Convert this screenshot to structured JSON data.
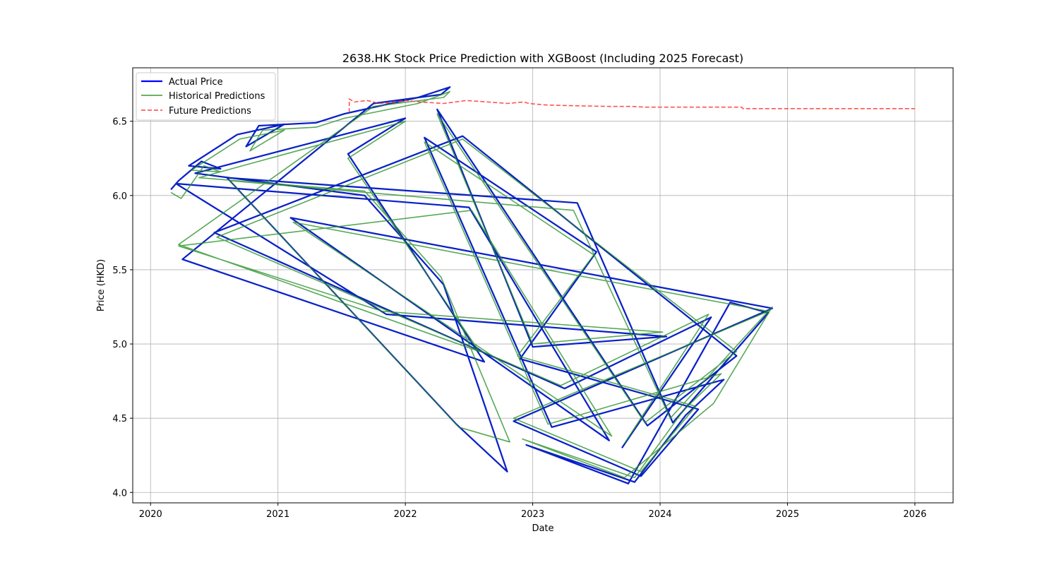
{
  "chart_data": {
    "type": "line",
    "title": "2638.HK Stock Price Prediction with XGBoost (Including 2025 Forecast)",
    "xlabel": "Date",
    "ylabel": "Price (HKD)",
    "xlim": [
      2019.86,
      2026.3
    ],
    "ylim": [
      3.93,
      6.86
    ],
    "x_ticks": [
      2020,
      2021,
      2022,
      2023,
      2024,
      2025,
      2026
    ],
    "x_tick_labels": [
      "2020",
      "2021",
      "2022",
      "2023",
      "2024",
      "2025",
      "2026"
    ],
    "y_ticks": [
      4.0,
      4.5,
      5.0,
      5.5,
      6.0,
      6.5
    ],
    "y_tick_labels": [
      "4.0",
      "4.5",
      "5.0",
      "5.5",
      "6.0",
      "6.5"
    ],
    "grid": true,
    "legend_position": "top-left",
    "colors": {
      "actual": "#0000ff",
      "historical": "#3a9a3a",
      "future": "#ff4040",
      "overlap": "#0b5a4a"
    },
    "legend": [
      "Actual Price",
      "Historical Predictions",
      "Future Predictions"
    ],
    "series": [
      {
        "name": "Actual Price",
        "style": "solid",
        "x": [
          2020.16,
          2020.22,
          2020.4,
          2020.55,
          2020.3,
          2020.68,
          2021.05,
          2020.75,
          2020.85,
          2021.3,
          2021.52,
          2022.1,
          2022.35,
          2022.28,
          2021.75,
          2020.25,
          2022.62,
          2021.55,
          2022.0,
          2020.35,
          2021.68,
          2022.3,
          2022.8,
          2022.4,
          2020.6,
          2023.35,
          2024.1,
          2024.85,
          2024.55,
          2023.75,
          2022.95,
          2023.8,
          2024.2,
          2024.5,
          2023.15,
          2022.15,
          2023.5,
          2022.9,
          2024.3,
          2023.85,
          2022.85,
          2024.88,
          2021.1,
          2023.6,
          2022.5,
          2020.2,
          2021.85,
          2024.05,
          2023.0,
          2022.25,
          2023.9,
          2024.6,
          2022.45,
          2020.5,
          2023.25,
          2024.4,
          2023.7
        ],
        "y": [
          6.04,
          6.1,
          6.23,
          6.18,
          6.2,
          6.41,
          6.48,
          6.33,
          6.47,
          6.49,
          6.55,
          6.66,
          6.73,
          6.68,
          6.62,
          5.57,
          4.88,
          6.28,
          6.52,
          6.15,
          6.0,
          5.4,
          4.14,
          4.46,
          6.12,
          5.95,
          4.47,
          5.21,
          5.28,
          4.06,
          4.32,
          4.07,
          4.52,
          4.76,
          4.44,
          6.39,
          5.62,
          4.9,
          4.56,
          4.11,
          4.48,
          5.24,
          5.85,
          4.35,
          5.92,
          6.08,
          5.2,
          5.05,
          4.98,
          6.58,
          4.45,
          4.92,
          6.4,
          5.75,
          4.7,
          5.18,
          4.3
        ]
      },
      {
        "name": "Historical Predictions",
        "style": "solid",
        "x": [
          2020.16,
          2020.24,
          2020.42,
          2020.55,
          2020.32,
          2020.7,
          2021.05,
          2020.78,
          2020.88,
          2021.3,
          2021.52,
          2022.1,
          2022.35,
          2022.3,
          2021.75,
          2020.22,
          2022.58,
          2021.55,
          2022.0,
          2020.38,
          2021.68,
          2022.28,
          2022.82,
          2022.42,
          2020.62,
          2023.32,
          2024.08,
          2024.88,
          2024.42,
          2023.72,
          2022.92,
          2023.8,
          2024.18,
          2024.48,
          2023.12,
          2022.15,
          2023.48,
          2022.88,
          2024.28,
          2023.85,
          2022.85,
          2024.85,
          2021.12,
          2023.62,
          2022.52,
          2020.22,
          2021.82,
          2024.02,
          2023.0,
          2022.25,
          2023.88,
          2024.6,
          2022.45,
          2020.52,
          2023.22,
          2024.38,
          2023.72
        ],
        "y": [
          6.02,
          5.98,
          6.2,
          6.16,
          6.17,
          6.38,
          6.44,
          6.3,
          6.44,
          6.46,
          6.52,
          6.62,
          6.7,
          6.66,
          6.6,
          5.67,
          4.95,
          6.25,
          6.5,
          6.12,
          6.03,
          5.45,
          4.34,
          4.44,
          6.1,
          5.9,
          4.5,
          5.25,
          4.6,
          4.1,
          4.36,
          4.1,
          4.55,
          4.8,
          4.46,
          6.36,
          5.6,
          4.92,
          4.58,
          4.14,
          4.5,
          5.22,
          5.82,
          4.38,
          5.9,
          5.66,
          5.22,
          5.08,
          5.0,
          6.55,
          4.47,
          4.95,
          6.38,
          5.72,
          4.72,
          5.2,
          4.33
        ]
      },
      {
        "name": "Future Predictions",
        "style": "dashed",
        "x": [
          2021.56,
          2021.56,
          2021.6,
          2021.7,
          2021.8,
          2021.92,
          2022.0,
          2022.12,
          2022.3,
          2022.48,
          2022.65,
          2022.8,
          2022.93,
          2022.97,
          2023.1,
          2023.3,
          2023.6,
          2023.78,
          2023.88,
          2024.0,
          2024.3,
          2024.64,
          2024.65,
          2024.8,
          2025.0,
          2025.5,
          2026.0
        ],
        "y": [
          6.56,
          6.65,
          6.63,
          6.64,
          6.62,
          6.63,
          6.64,
          6.63,
          6.62,
          6.64,
          6.63,
          6.62,
          6.63,
          6.62,
          6.61,
          6.605,
          6.6,
          6.6,
          6.595,
          6.595,
          6.595,
          6.595,
          6.585,
          6.585,
          6.585,
          6.585,
          6.585
        ]
      }
    ]
  }
}
